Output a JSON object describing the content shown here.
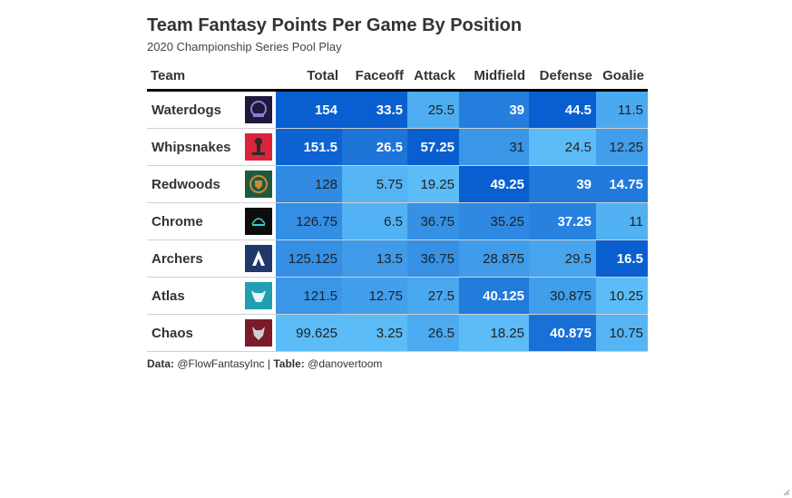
{
  "chart_data": {
    "type": "table",
    "title": "Team Fantasy Points Per Game By Position",
    "subtitle": "2020 Championship Series Pool Play",
    "columns": [
      "Team",
      "",
      "Total",
      "Faceoff",
      "Attack",
      "Midfield",
      "Defense",
      "Goalie"
    ],
    "rows": [
      {
        "team": "Waterdogs",
        "logo": "waterdogs-logo-icon",
        "values": [
          "154",
          "33.5",
          "25.5",
          "39",
          "44.5",
          "11.5"
        ]
      },
      {
        "team": "Whipsnakes",
        "logo": "whipsnakes-logo-icon",
        "values": [
          "151.5",
          "26.5",
          "57.25",
          "31",
          "24.5",
          "12.25"
        ]
      },
      {
        "team": "Redwoods",
        "logo": "redwoods-logo-icon",
        "values": [
          "128",
          "5.75",
          "19.25",
          "49.25",
          "39",
          "14.75"
        ]
      },
      {
        "team": "Chrome",
        "logo": "chrome-logo-icon",
        "values": [
          "126.75",
          "6.5",
          "36.75",
          "35.25",
          "37.25",
          "11"
        ]
      },
      {
        "team": "Archers",
        "logo": "archers-logo-icon",
        "values": [
          "125.125",
          "13.5",
          "36.75",
          "28.875",
          "29.5",
          "16.5"
        ]
      },
      {
        "team": "Atlas",
        "logo": "atlas-logo-icon",
        "values": [
          "121.5",
          "12.75",
          "27.5",
          "40.125",
          "30.875",
          "10.25"
        ]
      },
      {
        "team": "Chaos",
        "logo": "chaos-logo-icon",
        "values": [
          "99.625",
          "3.25",
          "26.5",
          "18.25",
          "40.875",
          "10.75"
        ]
      }
    ],
    "colors": {
      "low": "#5bbcf7",
      "high": "#0a5fd0"
    }
  },
  "source": {
    "data_label": "Data:",
    "data_value": " @FlowFantasyInc | ",
    "table_label": "Table:",
    "table_value": " @danovertoom"
  }
}
